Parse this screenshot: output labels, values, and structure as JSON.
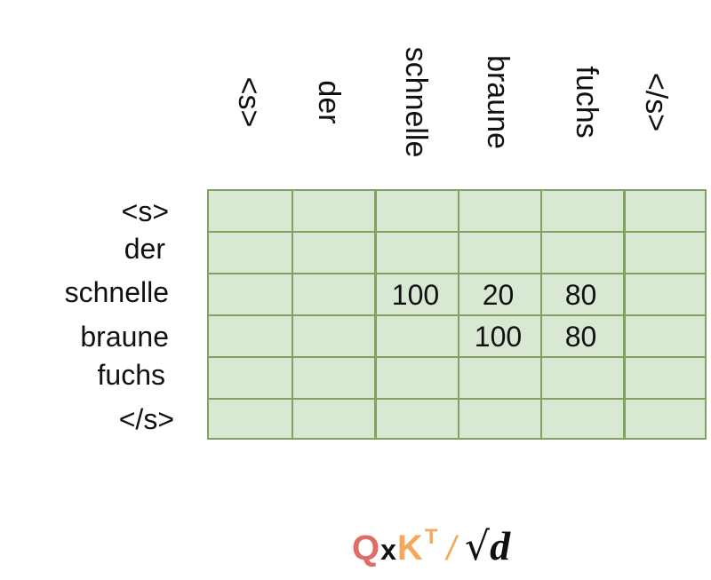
{
  "columns": [
    "<s>",
    "der",
    "schnelle",
    "braune",
    "fuchs",
    "</s>"
  ],
  "rows": [
    "<s>",
    "der",
    "schnelle",
    "braune",
    "fuchs",
    "</s>"
  ],
  "cells": {
    "schnelle": {
      "schnelle": "100",
      "braune": "20",
      "fuchs": "80"
    },
    "braune": {
      "braune": "100",
      "fuchs": "80"
    }
  },
  "formula": {
    "q": "Q",
    "times": "x",
    "k": "K",
    "transpose": "T",
    "divide": "/",
    "sqrt": "√",
    "d": "d"
  },
  "colors": {
    "grid_fill": "#d8e8d2",
    "grid_border": "#7fa262",
    "q": "#e06c66",
    "k": "#f5a85a"
  }
}
